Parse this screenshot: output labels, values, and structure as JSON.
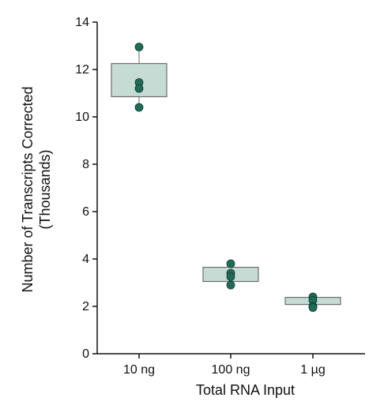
{
  "chart_data": {
    "type": "box",
    "xlabel": "Total RNA Input",
    "ylabel_lines": [
      "Number of Transcripts Corrected",
      "(Thousands)"
    ],
    "categories": [
      "10 ng",
      "100 ng",
      "1 µg"
    ],
    "ylim": [
      0,
      14
    ],
    "yticks": [
      0,
      2,
      4,
      6,
      8,
      10,
      12,
      14
    ],
    "grid": false,
    "boxes": [
      {
        "category": "10 ng",
        "q1": 10.85,
        "median": 11.3,
        "q3": 12.25,
        "whisker_low": 10.4,
        "whisker_high": 12.95
      },
      {
        "category": "100 ng",
        "q1": 3.05,
        "median": 3.35,
        "q3": 3.65,
        "whisker_low": 2.9,
        "whisker_high": 3.8
      },
      {
        "category": "1 µg",
        "q1": 2.08,
        "median": 2.2,
        "q3": 2.38,
        "whisker_low": 1.95,
        "whisker_high": 2.4
      }
    ],
    "points": [
      {
        "category": "10 ng",
        "values": [
          12.95,
          11.45,
          11.2,
          10.4
        ]
      },
      {
        "category": "100 ng",
        "values": [
          3.8,
          3.4,
          3.25,
          2.9
        ]
      },
      {
        "category": "1 µg",
        "values": [
          2.4,
          2.25,
          2.0,
          1.95
        ]
      }
    ],
    "colors": {
      "box_fill": "#c5dbd3",
      "box_stroke": "#6d6d6d",
      "point": "#1f6b57",
      "axis": "#111111"
    }
  }
}
